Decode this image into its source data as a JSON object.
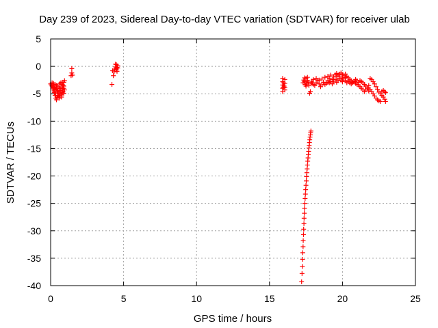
{
  "chart_data": {
    "type": "scatter",
    "title": "Day 239 of 2023, Sidereal Day-to-day VTEC variation (SDTVAR) for receiver ulab",
    "xlabel": "GPS time / hours",
    "ylabel": "SDTVAR / TECUs",
    "xlim": [
      0,
      25
    ],
    "ylim": [
      -40,
      5
    ],
    "xticks": [
      0,
      5,
      10,
      15,
      20,
      25
    ],
    "yticks": [
      5,
      0,
      -5,
      -10,
      -15,
      -20,
      -25,
      -30,
      -35,
      -40
    ],
    "xtick_labels": [
      "0",
      "5",
      "10",
      "15",
      "20",
      "25"
    ],
    "ytick_labels": [
      "5",
      "0",
      "-5",
      "-10",
      "-15",
      "-20",
      "-25",
      "-30",
      "-35",
      "-40"
    ],
    "grid": true,
    "marker": "plus",
    "color": "#ff0000",
    "series": [
      {
        "name": "ulab",
        "points": [
          [
            0.0,
            -3.2
          ],
          [
            0.05,
            -3.4
          ],
          [
            0.1,
            -3.6
          ],
          [
            0.15,
            -3.9
          ],
          [
            0.2,
            -4.3
          ],
          [
            0.25,
            -4.8
          ],
          [
            0.3,
            -5.3
          ],
          [
            0.35,
            -5.8
          ],
          [
            0.4,
            -6.1
          ],
          [
            0.1,
            -3.0
          ],
          [
            0.2,
            -3.1
          ],
          [
            0.3,
            -3.3
          ],
          [
            0.4,
            -3.5
          ],
          [
            0.5,
            -3.7
          ],
          [
            0.6,
            -4.0
          ],
          [
            0.7,
            -4.4
          ],
          [
            0.8,
            -4.8
          ],
          [
            0.25,
            -3.9
          ],
          [
            0.35,
            -4.2
          ],
          [
            0.45,
            -4.6
          ],
          [
            0.55,
            -5.0
          ],
          [
            0.65,
            -5.3
          ],
          [
            0.75,
            -5.2
          ],
          [
            0.85,
            -4.6
          ],
          [
            0.5,
            -5.6
          ],
          [
            0.55,
            -5.3
          ],
          [
            0.6,
            -5.0
          ],
          [
            0.7,
            -4.6
          ],
          [
            0.8,
            -4.1
          ],
          [
            0.9,
            -3.6
          ],
          [
            0.2,
            -3.5
          ],
          [
            0.3,
            -3.8
          ],
          [
            0.4,
            -4.1
          ],
          [
            0.5,
            -4.5
          ],
          [
            0.6,
            -4.4
          ],
          [
            0.7,
            -3.9
          ],
          [
            0.8,
            -3.3
          ],
          [
            0.9,
            -2.9
          ],
          [
            0.95,
            -2.6
          ],
          [
            0.15,
            -4.0
          ],
          [
            0.25,
            -4.5
          ],
          [
            0.35,
            -5.0
          ],
          [
            0.45,
            -5.4
          ],
          [
            0.6,
            -5.8
          ],
          [
            0.75,
            -5.6
          ],
          [
            0.9,
            -4.9
          ],
          [
            0.95,
            -4.3
          ],
          [
            0.6,
            -3.2
          ],
          [
            0.7,
            -3.0
          ],
          [
            0.8,
            -2.9
          ],
          [
            0.85,
            -3.5
          ],
          [
            0.9,
            -4.0
          ],
          [
            1.45,
            -0.4
          ],
          [
            1.45,
            -1.2
          ],
          [
            1.5,
            -1.6
          ],
          [
            1.4,
            -1.7
          ],
          [
            4.2,
            -3.3
          ],
          [
            4.25,
            -0.8
          ],
          [
            4.3,
            -1.7
          ],
          [
            4.35,
            -1.0
          ],
          [
            4.4,
            -0.5
          ],
          [
            4.45,
            -0.1
          ],
          [
            4.5,
            0.3
          ],
          [
            4.55,
            -0.2
          ],
          [
            4.6,
            0.1
          ],
          [
            4.45,
            0.4
          ],
          [
            4.5,
            -0.6
          ],
          [
            4.55,
            -0.9
          ],
          [
            4.6,
            -0.3
          ],
          [
            4.5,
            -0.4
          ],
          [
            15.9,
            -2.2
          ],
          [
            15.9,
            -2.8
          ],
          [
            15.9,
            -3.4
          ],
          [
            15.9,
            -4.0
          ],
          [
            15.9,
            -4.6
          ],
          [
            15.95,
            -3.0
          ],
          [
            15.95,
            -3.8
          ],
          [
            16.05,
            -2.4
          ],
          [
            16.05,
            -3.1
          ],
          [
            16.05,
            -3.9
          ],
          [
            16.05,
            -4.3
          ],
          [
            16.0,
            -3.6
          ],
          [
            17.2,
            -39.3
          ],
          [
            17.23,
            -37.8
          ],
          [
            17.25,
            -36.5
          ],
          [
            17.27,
            -35.2
          ],
          [
            17.28,
            -34.0
          ],
          [
            17.3,
            -32.9
          ],
          [
            17.31,
            -31.8
          ],
          [
            17.33,
            -30.7
          ],
          [
            17.34,
            -29.7
          ],
          [
            17.36,
            -28.7
          ],
          [
            17.37,
            -27.7
          ],
          [
            17.39,
            -26.8
          ],
          [
            17.4,
            -25.9
          ],
          [
            17.42,
            -25.0
          ],
          [
            17.44,
            -24.1
          ],
          [
            17.46,
            -23.3
          ],
          [
            17.48,
            -22.5
          ],
          [
            17.5,
            -21.7
          ],
          [
            17.52,
            -20.9
          ],
          [
            17.54,
            -20.1
          ],
          [
            17.56,
            -19.4
          ],
          [
            17.58,
            -18.7
          ],
          [
            17.6,
            -18.0
          ],
          [
            17.62,
            -17.3
          ],
          [
            17.64,
            -16.7
          ],
          [
            17.66,
            -16.1
          ],
          [
            17.68,
            -15.5
          ],
          [
            17.7,
            -14.9
          ],
          [
            17.72,
            -14.4
          ],
          [
            17.74,
            -13.9
          ],
          [
            17.76,
            -13.4
          ],
          [
            17.78,
            -12.9
          ],
          [
            17.8,
            -12.5
          ],
          [
            17.82,
            -12.1
          ],
          [
            17.84,
            -11.8
          ],
          [
            17.3,
            -3.0
          ],
          [
            17.35,
            -2.5
          ],
          [
            17.4,
            -2.8
          ],
          [
            17.45,
            -3.3
          ],
          [
            17.5,
            -3.6
          ],
          [
            17.55,
            -3.1
          ],
          [
            17.6,
            -2.6
          ],
          [
            17.65,
            -2.9
          ],
          [
            17.7,
            -3.5
          ],
          [
            17.75,
            -4.9
          ],
          [
            17.8,
            -4.6
          ],
          [
            17.85,
            -3.2
          ],
          [
            17.9,
            -2.7
          ],
          [
            17.4,
            -2.1
          ],
          [
            17.5,
            -2.2
          ],
          [
            17.6,
            -2.0
          ],
          [
            17.95,
            -3.0
          ],
          [
            18.0,
            -3.3
          ],
          [
            18.1,
            -3.5
          ],
          [
            18.2,
            -3.0
          ],
          [
            18.3,
            -2.6
          ],
          [
            18.4,
            -3.2
          ],
          [
            18.5,
            -3.7
          ],
          [
            18.6,
            -3.4
          ],
          [
            18.7,
            -2.9
          ],
          [
            18.8,
            -3.3
          ],
          [
            18.9,
            -3.1
          ],
          [
            19.0,
            -2.6
          ],
          [
            19.1,
            -2.2
          ],
          [
            19.2,
            -2.8
          ],
          [
            19.3,
            -3.2
          ],
          [
            19.4,
            -2.7
          ],
          [
            18.0,
            -2.4
          ],
          [
            18.2,
            -2.2
          ],
          [
            18.4,
            -2.5
          ],
          [
            18.6,
            -2.3
          ],
          [
            18.8,
            -2.0
          ],
          [
            19.0,
            -1.8
          ],
          [
            19.2,
            -1.6
          ],
          [
            19.4,
            -1.9
          ],
          [
            19.5,
            -1.5
          ],
          [
            19.6,
            -1.3
          ],
          [
            19.7,
            -1.6
          ],
          [
            19.8,
            -1.4
          ],
          [
            19.9,
            -1.2
          ],
          [
            20.0,
            -1.5
          ],
          [
            20.1,
            -1.7
          ],
          [
            20.2,
            -1.4
          ],
          [
            19.5,
            -2.4
          ],
          [
            19.6,
            -2.9
          ],
          [
            19.7,
            -2.6
          ],
          [
            19.8,
            -2.2
          ],
          [
            19.9,
            -2.5
          ],
          [
            20.0,
            -2.8
          ],
          [
            20.1,
            -2.3
          ],
          [
            20.2,
            -2.0
          ],
          [
            20.3,
            -1.8
          ],
          [
            20.4,
            -2.1
          ],
          [
            20.5,
            -2.4
          ],
          [
            20.6,
            -2.6
          ],
          [
            20.7,
            -2.9
          ],
          [
            20.8,
            -2.7
          ],
          [
            20.9,
            -2.4
          ],
          [
            21.0,
            -2.6
          ],
          [
            20.3,
            -3.0
          ],
          [
            20.4,
            -2.8
          ],
          [
            20.5,
            -3.0
          ],
          [
            20.6,
            -3.2
          ],
          [
            20.7,
            -3.0
          ],
          [
            20.8,
            -2.8
          ],
          [
            20.9,
            -3.1
          ],
          [
            21.0,
            -3.3
          ],
          [
            21.1,
            -2.9
          ],
          [
            21.2,
            -2.6
          ],
          [
            21.3,
            -2.8
          ],
          [
            21.4,
            -3.0
          ],
          [
            21.5,
            -3.3
          ],
          [
            21.6,
            -3.6
          ],
          [
            21.7,
            -3.9
          ],
          [
            21.8,
            -3.5
          ],
          [
            21.1,
            -3.4
          ],
          [
            21.2,
            -3.7
          ],
          [
            21.3,
            -4.0
          ],
          [
            21.4,
            -4.3
          ],
          [
            21.5,
            -4.6
          ],
          [
            21.6,
            -4.3
          ],
          [
            21.7,
            -4.0
          ],
          [
            21.8,
            -4.5
          ],
          [
            21.9,
            -2.2
          ],
          [
            22.0,
            -2.4
          ],
          [
            22.1,
            -2.8
          ],
          [
            22.2,
            -3.2
          ],
          [
            22.3,
            -3.7
          ],
          [
            22.4,
            -4.2
          ],
          [
            22.5,
            -4.7
          ],
          [
            22.6,
            -5.0
          ],
          [
            21.9,
            -4.2
          ],
          [
            22.0,
            -4.6
          ],
          [
            22.1,
            -5.0
          ],
          [
            22.2,
            -5.4
          ],
          [
            22.3,
            -5.8
          ],
          [
            22.4,
            -6.1
          ],
          [
            22.5,
            -6.3
          ],
          [
            22.6,
            -6.4
          ],
          [
            22.7,
            -5.3
          ],
          [
            22.8,
            -5.6
          ],
          [
            22.9,
            -6.0
          ],
          [
            22.95,
            -6.4
          ],
          [
            22.7,
            -4.6
          ],
          [
            22.8,
            -4.4
          ],
          [
            22.9,
            -4.6
          ],
          [
            22.95,
            -4.8
          ],
          [
            19.0,
            -2.9
          ],
          [
            19.1,
            -3.0
          ],
          [
            19.3,
            -2.4
          ],
          [
            19.6,
            -1.9
          ],
          [
            19.8,
            -1.9
          ],
          [
            20.0,
            -2.1
          ],
          [
            20.2,
            -2.6
          ],
          [
            20.4,
            -2.6
          ]
        ]
      }
    ]
  }
}
